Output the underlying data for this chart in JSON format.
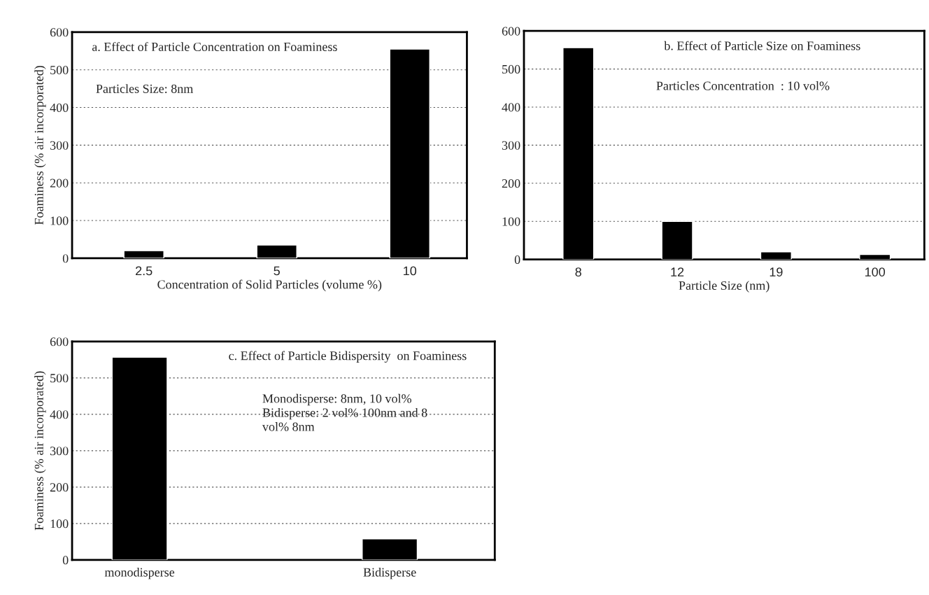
{
  "chart_data": [
    {
      "type": "bar",
      "title": "a. Effect of Particle Concentration on Foaminess",
      "xlabel": "Concentration of Solid Particles (volume %)",
      "ylabel": "Foaminess (% air incorporated)",
      "categories": [
        "2.5",
        "5",
        "10"
      ],
      "values": [
        20,
        35,
        555
      ],
      "color": "#000000",
      "ylim": [
        0,
        600
      ],
      "yticks": [
        0,
        100,
        200,
        300,
        400,
        500,
        600
      ],
      "grid": "y",
      "annotations": [
        "Particles Size: 8nm"
      ]
    },
    {
      "type": "bar",
      "title": "b. Effect of Particle Size on Foaminess",
      "xlabel": "Particle Size (nm)",
      "categories": [
        "8",
        "12",
        "19",
        "100"
      ],
      "values": [
        556,
        100,
        20,
        13
      ],
      "color": "#000000",
      "ylim": [
        0,
        600
      ],
      "yticks": [
        0,
        100,
        200,
        300,
        400,
        500,
        600
      ],
      "grid": "y",
      "annotations": [
        "Particles Concentration  : 10 vol%"
      ]
    },
    {
      "type": "bar",
      "title": "c. Effect of Particle Bidispersity  on Foaminess",
      "ylabel": "Foaminess (% air incorporated)",
      "categories": [
        "monodisperse",
        "Bidisperse"
      ],
      "values": [
        557,
        58
      ],
      "color": "#000000",
      "ylim": [
        0,
        600
      ],
      "yticks": [
        0,
        100,
        200,
        300,
        400,
        500,
        600
      ],
      "grid": "y",
      "annotations": [
        "Monodisperse: 8nm, 10 vol%\nBidisperse: 2 vol% 100nm and 8\nvol% 8nm"
      ]
    }
  ]
}
